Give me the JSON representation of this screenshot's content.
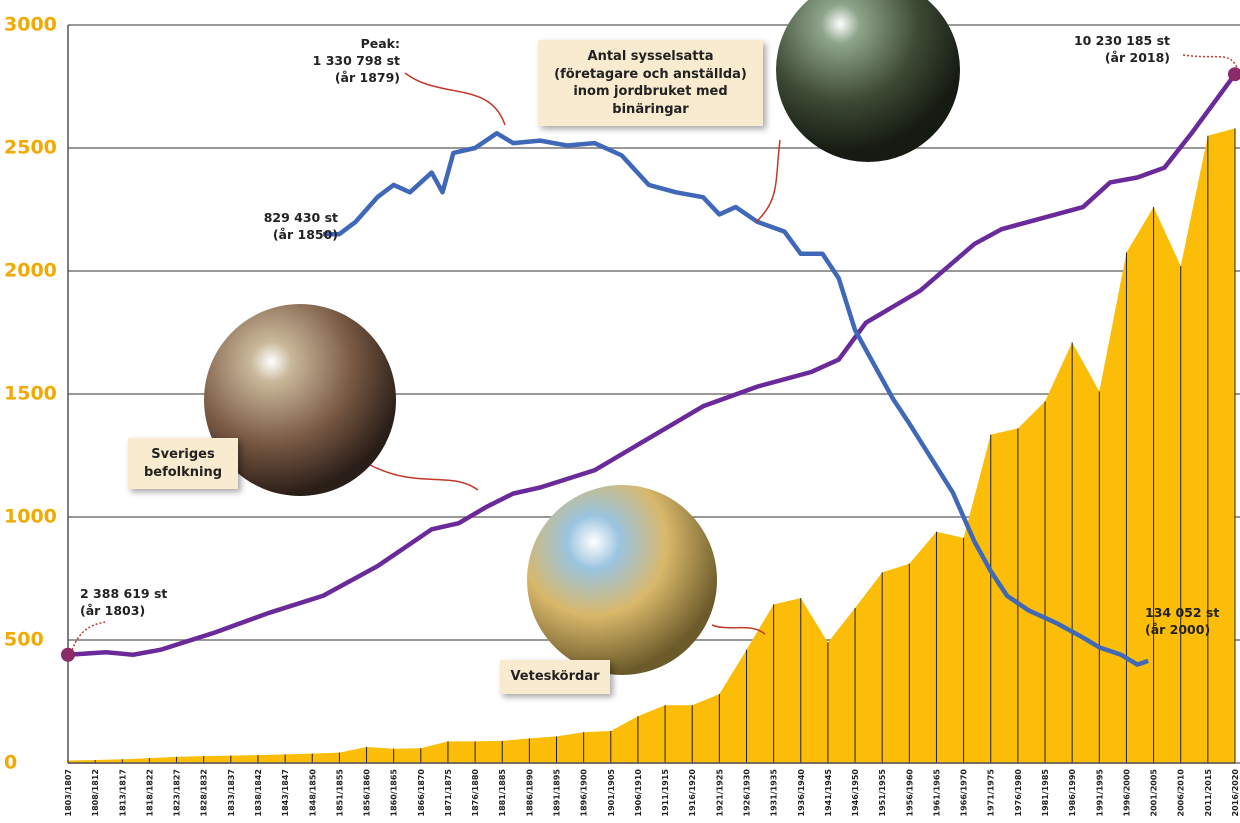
{
  "chart_data": {
    "type": "area-lines",
    "ylim": [
      0,
      3000
    ],
    "yticks": [
      0,
      500,
      1000,
      1500,
      2000,
      2500,
      3000
    ],
    "grid": true,
    "xlim": [
      1803,
      2018
    ],
    "categories": [
      "1803/1807",
      "1808/1812",
      "1813/1817",
      "1818/1822",
      "1823/1827",
      "1828/1832",
      "1833/1837",
      "1838/1842",
      "1843/1847",
      "1848/1850",
      "1851/1855",
      "1856/1860",
      "1860/1865",
      "1866/1870",
      "1871/1875",
      "1876/1880",
      "1881/1885",
      "1886/1890",
      "1891/1895",
      "1896/1900",
      "1901/1905",
      "1906/1910",
      "1911/1915",
      "1916/1920",
      "1921/1925",
      "1926/1930",
      "1931/1935",
      "1936/1940",
      "1941/1945",
      "1946/1950",
      "1951/1955",
      "1956/1960",
      "1961/1965",
      "1966/1970",
      "1971/1975",
      "1976/1980",
      "1981/1985",
      "1986/1990",
      "1991/1995",
      "1996/2000",
      "2001/2005",
      "2006/2010",
      "2011/2015",
      "2016/2020"
    ],
    "area": {
      "name": "Veteskördar",
      "color": "#fbbd08",
      "values": [
        10,
        12,
        15,
        20,
        25,
        28,
        30,
        32,
        35,
        38,
        42,
        65,
        58,
        60,
        88,
        88,
        90,
        100,
        108,
        125,
        130,
        190,
        235,
        235,
        280,
        460,
        645,
        670,
        490,
        630,
        775,
        810,
        940,
        915,
        1335,
        1360,
        1470,
        1710,
        1510,
        2075,
        2260,
        2020,
        2550,
        2580
      ]
    },
    "series": [
      {
        "name": "Sveriges befolkning",
        "color": "#6a2a9a",
        "x": [
          1803,
          1810,
          1815,
          1820,
          1830,
          1840,
          1850,
          1860,
          1870,
          1875,
          1880,
          1885,
          1890,
          1900,
          1910,
          1920,
          1930,
          1940,
          1945,
          1950,
          1960,
          1970,
          1975,
          1980,
          1990,
          1995,
          2000,
          2005,
          2010,
          2018
        ],
        "values": [
          440,
          450,
          440,
          460,
          530,
          610,
          680,
          800,
          950,
          975,
          1040,
          1095,
          1120,
          1190,
          1320,
          1450,
          1530,
          1590,
          1640,
          1790,
          1920,
          2110,
          2170,
          2200,
          2260,
          2360,
          2380,
          2420,
          2560,
          2800
        ]
      },
      {
        "name": "Antal sysselsatta (företagare och anställda) inom jordbruket med binäringar",
        "color": "#3f68b8",
        "x": [
          1850,
          1853,
          1856,
          1860,
          1863,
          1866,
          1870,
          1872,
          1874,
          1878,
          1882,
          1885,
          1890,
          1895,
          1900,
          1905,
          1910,
          1915,
          1920,
          1923,
          1926,
          1930,
          1935,
          1938,
          1942,
          1945,
          1948,
          1952,
          1955,
          1958,
          1962,
          1966,
          1970,
          1973,
          1976,
          1980,
          1985,
          1990,
          1993,
          1997,
          2000,
          2002
        ],
        "values": [
          2150,
          2150,
          2200,
          2300,
          2350,
          2320,
          2400,
          2320,
          2480,
          2500,
          2560,
          2520,
          2530,
          2510,
          2520,
          2470,
          2350,
          2320,
          2300,
          2230,
          2260,
          2200,
          2160,
          2070,
          2070,
          1970,
          1760,
          1600,
          1480,
          1380,
          1240,
          1100,
          900,
          780,
          680,
          620,
          570,
          510,
          470,
          440,
          400,
          415
        ]
      }
    ],
    "annotations": [
      {
        "lines": [
          "2 388 619 st",
          "(år 1803)"
        ]
      },
      {
        "lines": [
          "829 430 st",
          "(år 1850)"
        ]
      },
      {
        "lines": [
          "Peak:",
          "1 330 798 st",
          "(år 1879)"
        ]
      },
      {
        "lines": [
          "10 230 185 st",
          "(år 2018)"
        ]
      },
      {
        "lines": [
          "134 052 st",
          "(år 2000)"
        ]
      }
    ]
  }
}
